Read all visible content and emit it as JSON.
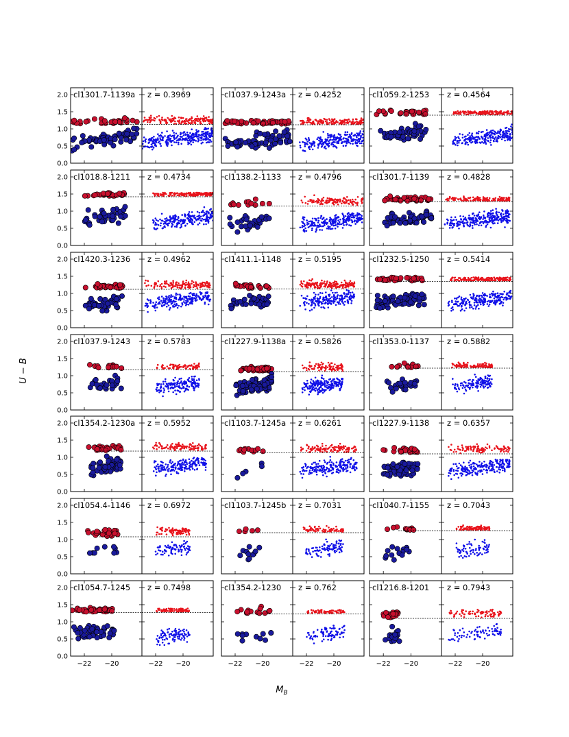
{
  "figure": {
    "xlabel_main": "M",
    "xlabel_sub": "B",
    "ylabel": "U − B"
  },
  "colors": {
    "red": "#e8141c",
    "red_dark": "#c8102e",
    "blue": "#1010e8",
    "blue_dark": "#1a1a9c",
    "edge": "#000000"
  },
  "chart_data": {
    "type": "scatter",
    "xlim": [
      -23.0,
      -17.8
    ],
    "ylim": [
      0.0,
      2.2
    ],
    "xticks": [
      -22,
      -20
    ],
    "yticks": [
      0.0,
      0.5,
      1.0,
      1.5,
      2.0
    ],
    "xtick_labels": [
      "−22",
      "−20"
    ],
    "ytick_labels": [
      "0.0",
      "0.5",
      "1.0",
      "1.5",
      "2.0"
    ],
    "panels": [
      {
        "cluster": "cl1301.7-1139a",
        "redshift": "z = 0.3969",
        "divide": 1.13,
        "n_big": 90,
        "n_small": 460,
        "red_frac": 0.35,
        "big_lim": [
          -23.0,
          -18.1
        ],
        "small_lim": [
          -23.0,
          -17.8
        ],
        "red_level": 1.2,
        "blue_level": 0.7,
        "small_red_level": 1.25,
        "small_blue_level": 0.72
      },
      {
        "cluster": "cl1037.9-1243a",
        "redshift": "z = 0.4252",
        "divide": 1.12,
        "n_big": 110,
        "n_small": 420,
        "red_frac": 0.38,
        "big_lim": [
          -23.0,
          -18.0
        ],
        "small_lim": [
          -22.5,
          -17.8
        ],
        "red_level": 1.05,
        "blue_level": 0.65,
        "small_red_level": 1.2,
        "small_blue_level": 0.65
      },
      {
        "cluster": "cl1059.2-1253",
        "redshift": "z = 0.4564",
        "divide": 1.4,
        "n_big": 75,
        "n_small": 380,
        "red_frac": 0.42,
        "big_lim": [
          -22.6,
          -18.9
        ],
        "small_lim": [
          -22.2,
          -17.8
        ],
        "red_level": 1.45,
        "blue_level": 0.85,
        "small_red_level": 1.3,
        "small_blue_level": 0.75
      },
      {
        "cluster": "cl1018.8-1211",
        "redshift": "z = 0.4734",
        "divide": 1.42,
        "n_big": 70,
        "n_small": 380,
        "red_frac": 0.4,
        "big_lim": [
          -22.0,
          -19.0
        ],
        "small_lim": [
          -22.2,
          -17.8
        ],
        "red_level": 1.4,
        "blue_level": 0.85,
        "small_red_level": 1.3,
        "small_blue_level": 0.75
      },
      {
        "cluster": "cl1138.2-1133",
        "redshift": "z = 0.4796",
        "divide": 1.15,
        "n_big": 45,
        "n_small": 360,
        "red_frac": 0.35,
        "big_lim": [
          -22.5,
          -19.5
        ],
        "small_lim": [
          -22.5,
          -17.9
        ],
        "red_level": 1.22,
        "blue_level": 0.65,
        "small_red_level": 1.3,
        "small_blue_level": 0.7
      },
      {
        "cluster": "cl1301.7-1139",
        "redshift": "z = 0.4828",
        "divide": 1.28,
        "n_big": 90,
        "n_small": 420,
        "red_frac": 0.35,
        "big_lim": [
          -22.0,
          -18.5
        ],
        "small_lim": [
          -22.8,
          -18.0
        ],
        "red_level": 1.32,
        "blue_level": 0.8,
        "small_red_level": 1.3,
        "small_blue_level": 0.75
      },
      {
        "cluster": "cl1420.3-1236",
        "redshift": "z = 0.4962",
        "divide": 1.12,
        "n_big": 70,
        "n_small": 380,
        "red_frac": 0.35,
        "big_lim": [
          -22.0,
          -19.2
        ],
        "small_lim": [
          -22.8,
          -18.0
        ],
        "red_level": 1.2,
        "blue_level": 0.7,
        "small_red_level": 1.25,
        "small_blue_level": 0.8
      },
      {
        "cluster": "cl1411.1-1148",
        "redshift": "z = 0.5195",
        "divide": 1.13,
        "n_big": 60,
        "n_small": 360,
        "red_frac": 0.45,
        "big_lim": [
          -22.5,
          -19.5
        ],
        "small_lim": [
          -22.5,
          -18.5
        ],
        "red_level": 1.15,
        "blue_level": 0.75,
        "small_red_level": 1.25,
        "small_blue_level": 0.8
      },
      {
        "cluster": "cl1232.5-1250",
        "redshift": "z = 0.5414",
        "divide": 1.35,
        "n_big": 120,
        "n_small": 420,
        "red_frac": 0.4,
        "big_lim": [
          -22.7,
          -19.0
        ],
        "small_lim": [
          -22.5,
          -17.9
        ],
        "red_level": 1.3,
        "blue_level": 0.8,
        "small_red_level": 1.3,
        "small_blue_level": 0.8
      },
      {
        "cluster": "cl1037.9-1243",
        "redshift": "z = 0.5783",
        "divide": 1.17,
        "n_big": 40,
        "n_small": 240,
        "red_frac": 0.4,
        "big_lim": [
          -21.8,
          -19.2
        ],
        "small_lim": [
          -22.0,
          -18.8
        ],
        "red_level": 1.25,
        "blue_level": 0.72,
        "small_red_level": 1.25,
        "small_blue_level": 0.72
      },
      {
        "cluster": "cl1227.9-1138a",
        "redshift": "z = 0.5826",
        "divide": 1.12,
        "n_big": 130,
        "n_small": 300,
        "red_frac": 0.3,
        "big_lim": [
          -22.0,
          -19.3
        ],
        "small_lim": [
          -22.3,
          -19.3
        ],
        "red_level": 1.15,
        "blue_level": 0.72,
        "small_red_level": 1.25,
        "small_blue_level": 0.72
      },
      {
        "cluster": "cl1353.0-1137",
        "redshift": "z = 0.5882",
        "divide": 1.22,
        "n_big": 35,
        "n_small": 240,
        "red_frac": 0.45,
        "big_lim": [
          -21.9,
          -19.5
        ],
        "small_lim": [
          -22.3,
          -19.3
        ],
        "red_level": 1.22,
        "blue_level": 0.75,
        "small_red_level": 1.25,
        "small_blue_level": 0.75
      },
      {
        "cluster": "cl1354.2-1230a",
        "redshift": "z = 0.5952",
        "divide": 1.18,
        "n_big": 80,
        "n_small": 300,
        "red_frac": 0.35,
        "big_lim": [
          -21.8,
          -19.3
        ],
        "small_lim": [
          -22.3,
          -18.3
        ],
        "red_level": 1.25,
        "blue_level": 0.75,
        "small_red_level": 1.3,
        "small_blue_level": 0.75
      },
      {
        "cluster": "cl1103.7-1245a",
        "redshift": "z = 0.6261",
        "divide": 1.13,
        "n_big": 16,
        "n_small": 320,
        "red_frac": 0.4,
        "big_lim": [
          -22.0,
          -19.8
        ],
        "small_lim": [
          -22.5,
          -18.3
        ],
        "red_level": 1.1,
        "blue_level": 0.6,
        "small_red_level": 1.25,
        "small_blue_level": 0.7
      },
      {
        "cluster": "cl1227.9-1138",
        "redshift": "z = 0.6357",
        "divide": 1.1,
        "n_big": 85,
        "n_small": 320,
        "red_frac": 0.3,
        "big_lim": [
          -22.0,
          -19.5
        ],
        "small_lim": [
          -22.5,
          -18.0
        ],
        "red_level": 1.2,
        "blue_level": 0.65,
        "small_red_level": 1.25,
        "small_blue_level": 0.7
      },
      {
        "cluster": "cl1054.4-1146",
        "redshift": "z = 0.6972",
        "divide": 1.08,
        "n_big": 35,
        "n_small": 170,
        "red_frac": 0.55,
        "big_lim": [
          -22.0,
          -19.5
        ],
        "small_lim": [
          -22.0,
          -19.5
        ],
        "red_level": 1.2,
        "blue_level": 0.6,
        "small_red_level": 1.25,
        "small_blue_level": 0.72
      },
      {
        "cluster": "cl1103.7-1245b",
        "redshift": "z = 0.7031",
        "divide": 1.2,
        "n_big": 16,
        "n_small": 180,
        "red_frac": 0.45,
        "big_lim": [
          -22.0,
          -20.2
        ],
        "small_lim": [
          -22.3,
          -19.3
        ],
        "red_level": 1.2,
        "blue_level": 0.6,
        "small_red_level": 1.25,
        "small_blue_level": 0.72
      },
      {
        "cluster": "cl1040.7-1155",
        "redshift": "z = 0.7043",
        "divide": 1.26,
        "n_big": 25,
        "n_small": 170,
        "red_frac": 0.5,
        "big_lim": [
          -22.0,
          -19.8
        ],
        "small_lim": [
          -22.0,
          -19.5
        ],
        "red_level": 1.28,
        "blue_level": 0.6,
        "small_red_level": 1.25,
        "small_blue_level": 0.72
      },
      {
        "cluster": "cl1054.7-1245",
        "redshift": "z = 0.7498",
        "divide": 1.27,
        "n_big": 90,
        "n_small": 200,
        "red_frac": 0.45,
        "big_lim": [
          -23.0,
          -19.8
        ],
        "small_lim": [
          -22.0,
          -19.5
        ],
        "red_level": 1.3,
        "blue_level": 0.7,
        "small_red_level": 1.25,
        "small_blue_level": 0.6
      },
      {
        "cluster": "cl1354.2-1230",
        "redshift": "z = 0.762",
        "divide": 1.23,
        "n_big": 25,
        "n_small": 160,
        "red_frac": 0.4,
        "big_lim": [
          -22.0,
          -19.3
        ],
        "small_lim": [
          -22.0,
          -19.2
        ],
        "red_level": 1.3,
        "blue_level": 0.6,
        "small_red_level": 1.25,
        "small_blue_level": 0.65
      },
      {
        "cluster": "cl1216.8-1201",
        "redshift": "z = 0.7943",
        "divide": 1.1,
        "n_big": 45,
        "n_small": 160,
        "red_frac": 0.5,
        "big_lim": [
          -22.0,
          -20.8
        ],
        "small_lim": [
          -22.5,
          -18.6
        ],
        "red_level": 1.2,
        "blue_level": 0.55,
        "small_red_level": 1.25,
        "small_blue_level": 0.65
      }
    ]
  }
}
